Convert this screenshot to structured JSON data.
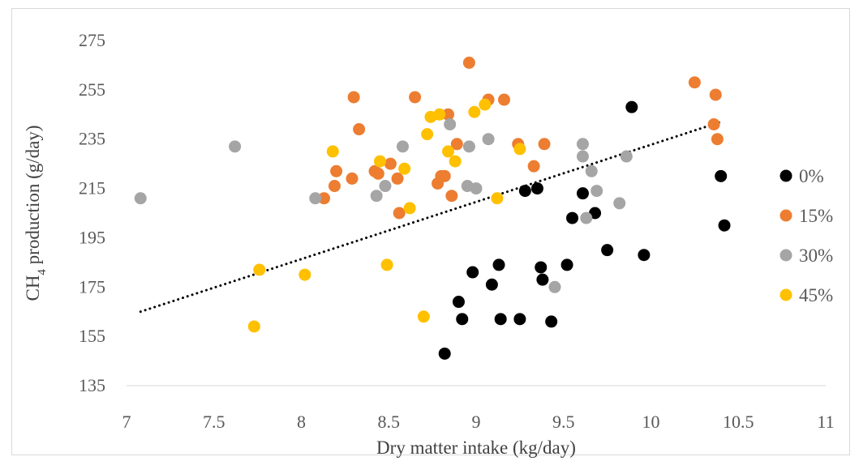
{
  "chart_data": {
    "type": "scatter",
    "xlabel": "Dry matter intake (kg/day)",
    "ylabel": "CH4 production (g/day)",
    "xlim": [
      7,
      11
    ],
    "ylim": [
      135,
      275
    ],
    "x_ticks": [
      "7",
      "7.5",
      "8",
      "8.5",
      "9",
      "9.5",
      "10",
      "10.5",
      "11"
    ],
    "y_ticks": [
      "135",
      "155",
      "175",
      "195",
      "215",
      "235",
      "255",
      "275"
    ],
    "grid": false,
    "legend_position": "right",
    "trendline": {
      "type": "linear",
      "style": "dotted",
      "color": "#000000",
      "x": [
        7.08,
        10.4
      ],
      "y": [
        165,
        242
      ]
    },
    "series": [
      {
        "name": "0%",
        "color": "#000000",
        "points": [
          [
            8.82,
            148
          ],
          [
            8.9,
            169
          ],
          [
            8.92,
            162
          ],
          [
            8.98,
            181
          ],
          [
            9.09,
            176
          ],
          [
            9.13,
            184
          ],
          [
            9.14,
            162
          ],
          [
            9.25,
            162
          ],
          [
            9.28,
            214
          ],
          [
            9.35,
            215
          ],
          [
            9.37,
            183
          ],
          [
            9.38,
            178
          ],
          [
            9.43,
            161
          ],
          [
            9.52,
            184
          ],
          [
            9.55,
            203
          ],
          [
            9.61,
            213
          ],
          [
            9.68,
            205
          ],
          [
            9.75,
            190
          ],
          [
            9.89,
            248
          ],
          [
            9.96,
            188
          ],
          [
            10.4,
            220
          ],
          [
            10.42,
            200
          ]
        ]
      },
      {
        "name": "15%",
        "color": "#ED7D31",
        "points": [
          [
            8.13,
            211
          ],
          [
            8.19,
            216
          ],
          [
            8.2,
            222
          ],
          [
            8.29,
            219
          ],
          [
            8.3,
            252
          ],
          [
            8.33,
            239
          ],
          [
            8.42,
            222
          ],
          [
            8.44,
            221
          ],
          [
            8.51,
            225
          ],
          [
            8.55,
            219
          ],
          [
            8.56,
            205
          ],
          [
            8.65,
            252
          ],
          [
            8.78,
            217
          ],
          [
            8.8,
            220
          ],
          [
            8.82,
            220
          ],
          [
            8.84,
            245
          ],
          [
            8.86,
            212
          ],
          [
            8.89,
            233
          ],
          [
            8.96,
            266
          ],
          [
            9.07,
            251
          ],
          [
            9.16,
            251
          ],
          [
            9.24,
            233
          ],
          [
            9.33,
            224
          ],
          [
            9.39,
            233
          ],
          [
            10.25,
            258
          ],
          [
            10.36,
            241
          ],
          [
            10.37,
            253
          ],
          [
            10.38,
            235
          ]
        ]
      },
      {
        "name": "30%",
        "color": "#A5A5A5",
        "points": [
          [
            7.08,
            211
          ],
          [
            7.62,
            232
          ],
          [
            8.08,
            211
          ],
          [
            8.43,
            212
          ],
          [
            8.48,
            216
          ],
          [
            8.58,
            232
          ],
          [
            8.85,
            241
          ],
          [
            8.95,
            216
          ],
          [
            8.96,
            232
          ],
          [
            9.0,
            215
          ],
          [
            9.07,
            235
          ],
          [
            9.45,
            175
          ],
          [
            9.61,
            228
          ],
          [
            9.61,
            233
          ],
          [
            9.63,
            203
          ],
          [
            9.66,
            222
          ],
          [
            9.69,
            214
          ],
          [
            9.82,
            209
          ],
          [
            9.86,
            228
          ]
        ]
      },
      {
        "name": "45%",
        "color": "#FFC000",
        "points": [
          [
            7.73,
            159
          ],
          [
            7.76,
            182
          ],
          [
            8.02,
            180
          ],
          [
            8.18,
            230
          ],
          [
            8.45,
            226
          ],
          [
            8.49,
            184
          ],
          [
            8.59,
            223
          ],
          [
            8.62,
            207
          ],
          [
            8.7,
            163
          ],
          [
            8.72,
            237
          ],
          [
            8.74,
            244
          ],
          [
            8.79,
            245
          ],
          [
            8.84,
            230
          ],
          [
            8.88,
            226
          ],
          [
            8.99,
            246
          ],
          [
            9.05,
            249
          ],
          [
            9.12,
            211
          ],
          [
            9.25,
            231
          ]
        ]
      }
    ]
  }
}
